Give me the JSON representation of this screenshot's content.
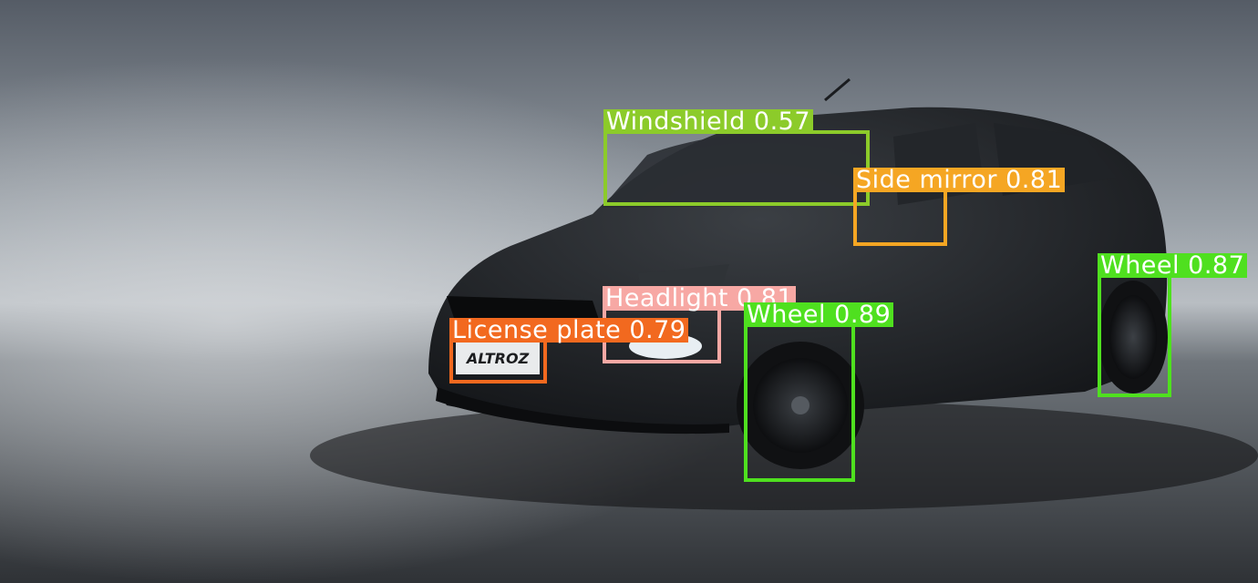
{
  "car": {
    "badge_text": "ALTROZ"
  },
  "detections": [
    {
      "label": "Windshield",
      "score": "0.57",
      "color": "#8ccb2a"
    },
    {
      "label": "Side mirror",
      "score": "0.81",
      "color": "#f5a623"
    },
    {
      "label": "Headlight",
      "score": "0.81",
      "color": "#f7a8a4"
    },
    {
      "label": "License plate",
      "score": "0.79",
      "color": "#f2691f"
    },
    {
      "label": "Wheel",
      "score": "0.89",
      "color": "#4fe01f"
    },
    {
      "label": "Wheel",
      "score": "0.87",
      "color": "#4fe01f"
    }
  ]
}
